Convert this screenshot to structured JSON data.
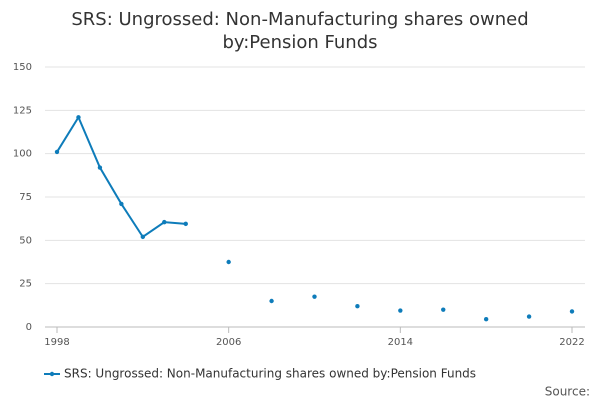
{
  "chart_data": {
    "type": "line",
    "title": "SRS: Ungrossed: Non-Manufacturing shares owned by:Pension Funds",
    "x": [
      1998,
      1999,
      2000,
      2001,
      2002,
      2003,
      2004,
      2005,
      2006,
      2007,
      2008,
      2009,
      2010,
      2011,
      2012,
      2013,
      2014,
      2015,
      2016,
      2017,
      2018,
      2019,
      2020,
      2021,
      2022
    ],
    "series": [
      {
        "name": "SRS: Ungrossed: Non-Manufacturing shares owned by:Pension Funds",
        "color": "#0e7cba",
        "values": [
          101,
          121,
          92,
          71,
          52,
          60.5,
          59.5,
          null,
          37.5,
          null,
          15,
          null,
          17.5,
          null,
          12,
          null,
          9.5,
          null,
          10,
          null,
          4.5,
          null,
          6,
          null,
          9
        ]
      }
    ],
    "xlim": [
      1998,
      2022
    ],
    "xticks": [
      1998,
      2006,
      2014,
      2022
    ],
    "ylim": [
      0,
      150
    ],
    "yticks": [
      0,
      25,
      50,
      75,
      100,
      125,
      150
    ],
    "grid": true,
    "legend": "bottom",
    "source": "Source:"
  }
}
